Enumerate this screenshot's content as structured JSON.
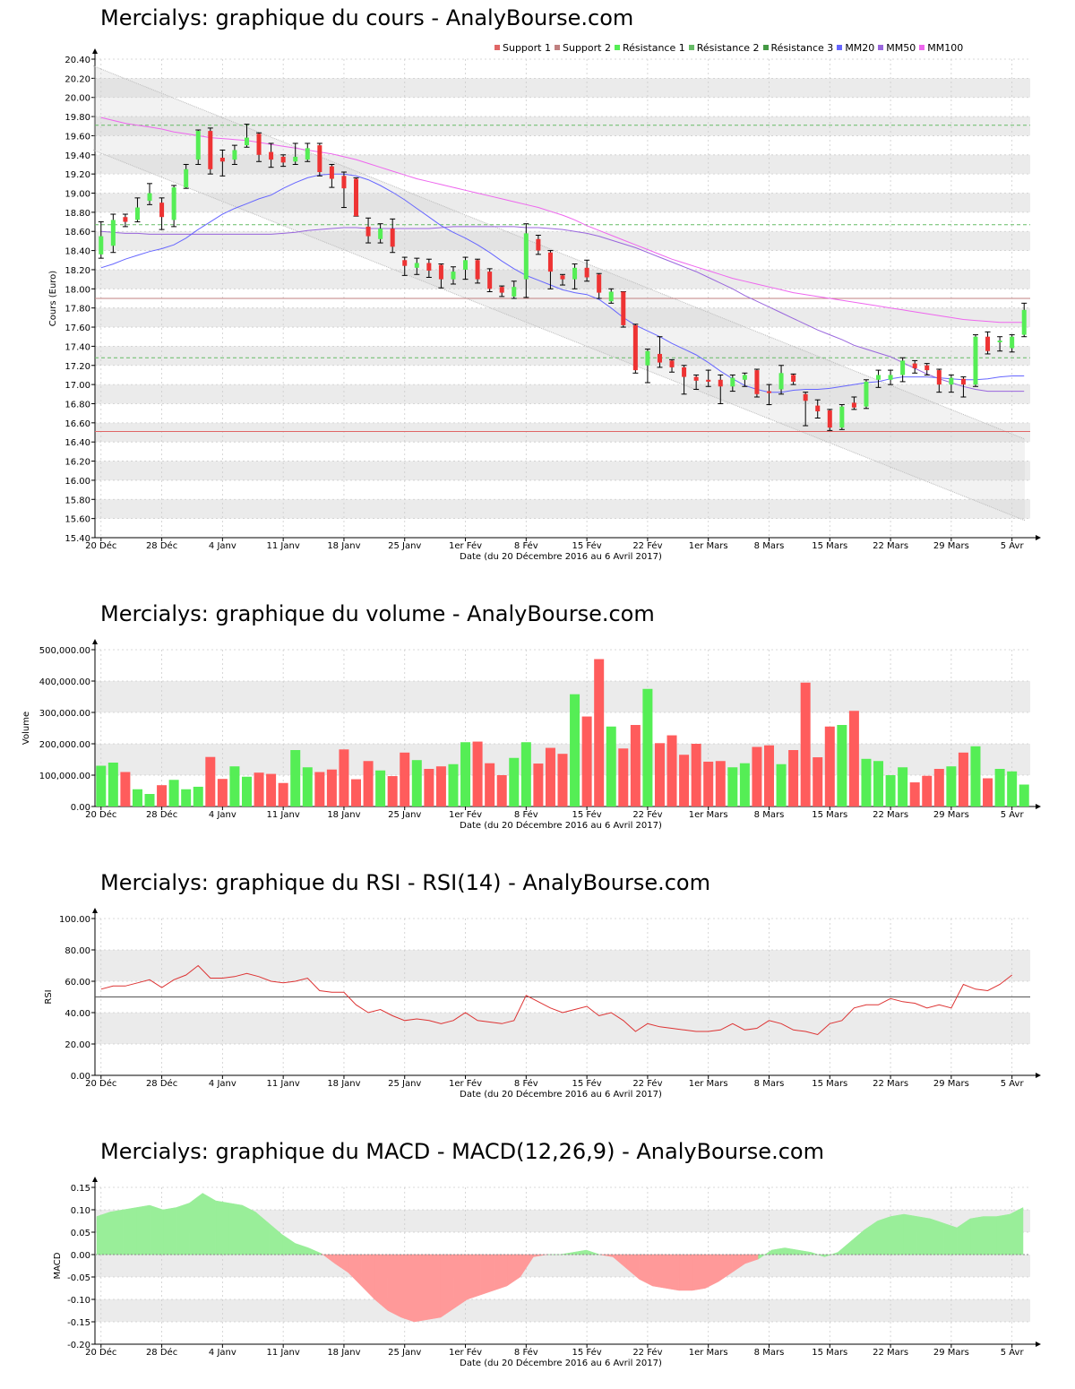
{
  "colors": {
    "up": "#55ee55",
    "down": "#ee3333",
    "support1": "#e06666",
    "support2": "#c08080",
    "resistance": "#66bb66",
    "mm20": "#6666ff",
    "mm50": "#9966dd",
    "mm100": "#ee66ee",
    "rsi": "#dd3333",
    "macd_pos": "#99ee99",
    "macd_neg": "#ff9999",
    "band": "#ebebeb",
    "grid": "#cccccc"
  },
  "x_axis": {
    "date_label": "Date (du 20 Décembre 2016 au 6 Avril 2017)",
    "ticks": [
      {
        "label": "20 Déc",
        "i": 0
      },
      {
        "label": "28 Déc",
        "i": 5
      },
      {
        "label": "4 Janv",
        "i": 10
      },
      {
        "label": "11 Janv",
        "i": 15
      },
      {
        "label": "18 Janv",
        "i": 20
      },
      {
        "label": "25 Janv",
        "i": 25
      },
      {
        "label": "1er Fév",
        "i": 30
      },
      {
        "label": "8 Fév",
        "i": 35
      },
      {
        "label": "15 Fév",
        "i": 40
      },
      {
        "label": "22 Fév",
        "i": 45
      },
      {
        "label": "1er Mars",
        "i": 50
      },
      {
        "label": "8 Mars",
        "i": 55
      },
      {
        "label": "15 Mars",
        "i": 60
      },
      {
        "label": "22 Mars",
        "i": 65
      },
      {
        "label": "29 Mars",
        "i": 70
      },
      {
        "label": "5 Avr",
        "i": 75
      }
    ]
  },
  "price_chart": {
    "title": "Mercialys: graphique du cours - AnalyBourse.com",
    "ylabel": "Cours (Euro)",
    "ylim": [
      15.4,
      20.4
    ],
    "yticks": [
      "20.40",
      "20.20",
      "20.00",
      "19.80",
      "19.60",
      "19.40",
      "19.20",
      "19.00",
      "18.80",
      "18.60",
      "18.40",
      "18.20",
      "18.00",
      "17.80",
      "17.60",
      "17.40",
      "17.20",
      "17.00",
      "16.80",
      "16.60",
      "16.40",
      "16.20",
      "16.00",
      "15.80",
      "15.60",
      "15.40"
    ],
    "legend": [
      "Support 1",
      "Support 2",
      "Résistance 1",
      "Résistance 2",
      "Résistance 3",
      "MM20",
      "MM50",
      "MM100"
    ],
    "support1": 16.51,
    "support2": 17.9,
    "resistance1": 17.28,
    "resistance2": 18.67,
    "resistance3": 19.71,
    "channel": {
      "upper_start": 20.33,
      "upper_end": 16.43,
      "lower_start": 19.45,
      "lower_end": 15.58
    }
  },
  "volume_chart": {
    "title": "Mercialys: graphique du volume - AnalyBourse.com",
    "ylabel": "Volume",
    "ylim": [
      0,
      500000
    ],
    "yticks": [
      "500,000.00",
      "400,000.00",
      "300,000.00",
      "200,000.00",
      "100,000.00",
      "0.00"
    ]
  },
  "rsi_chart": {
    "title": "Mercialys: graphique du RSI - RSI(14) - AnalyBourse.com",
    "ylabel": "RSI",
    "ylim": [
      0,
      100
    ],
    "yticks": [
      "100.00",
      "80.00",
      "60.00",
      "40.00",
      "20.00",
      "0.00"
    ],
    "midline": 50
  },
  "macd_chart": {
    "title": "Mercialys: graphique du MACD - MACD(12,26,9) - AnalyBourse.com",
    "ylabel": "MACD",
    "ylim": [
      -0.2,
      0.15
    ],
    "yticks": [
      "0.15",
      "0.10",
      "0.05",
      "0.00",
      "-0.05",
      "-0.10",
      "-0.15",
      "-0.20"
    ]
  },
  "chart_data": [
    {
      "type": "candlestick",
      "title": "Mercialys: graphique du cours - AnalyBourse.com",
      "xlabel": "Date (du 20 Décembre 2016 au 6 Avril 2017)",
      "ylabel": "Cours (Euro)",
      "ylim": [
        15.4,
        20.4
      ],
      "grid": true,
      "legend_position": "top-right",
      "candles": [
        {
          "o": 18.36,
          "c": 18.55,
          "h": 18.7,
          "l": 18.32
        },
        {
          "o": 18.45,
          "c": 18.72,
          "h": 18.78,
          "l": 18.38
        },
        {
          "o": 18.75,
          "c": 18.7,
          "h": 18.78,
          "l": 18.65
        },
        {
          "o": 18.72,
          "c": 18.85,
          "h": 18.95,
          "l": 18.7
        },
        {
          "o": 18.92,
          "c": 19.0,
          "h": 19.1,
          "l": 18.88
        },
        {
          "o": 18.9,
          "c": 18.75,
          "h": 18.95,
          "l": 18.62
        },
        {
          "o": 18.72,
          "c": 19.06,
          "h": 19.08,
          "l": 18.65
        },
        {
          "o": 19.06,
          "c": 19.25,
          "h": 19.3,
          "l": 19.05
        },
        {
          "o": 19.35,
          "c": 19.65,
          "h": 19.66,
          "l": 19.3
        },
        {
          "o": 19.65,
          "c": 19.25,
          "h": 19.68,
          "l": 19.2
        },
        {
          "o": 19.37,
          "c": 19.33,
          "h": 19.45,
          "l": 19.18
        },
        {
          "o": 19.35,
          "c": 19.45,
          "h": 19.5,
          "l": 19.3
        },
        {
          "o": 19.5,
          "c": 19.58,
          "h": 19.72,
          "l": 19.48
        },
        {
          "o": 19.62,
          "c": 19.4,
          "h": 19.63,
          "l": 19.33
        },
        {
          "o": 19.43,
          "c": 19.35,
          "h": 19.52,
          "l": 19.27
        },
        {
          "o": 19.38,
          "c": 19.32,
          "h": 19.4,
          "l": 19.28
        },
        {
          "o": 19.33,
          "c": 19.38,
          "h": 19.52,
          "l": 19.3
        },
        {
          "o": 19.35,
          "c": 19.47,
          "h": 19.52,
          "l": 19.33
        },
        {
          "o": 19.5,
          "c": 19.22,
          "h": 19.52,
          "l": 19.18
        },
        {
          "o": 19.28,
          "c": 19.15,
          "h": 19.3,
          "l": 19.06
        },
        {
          "o": 19.18,
          "c": 19.05,
          "h": 19.22,
          "l": 18.85
        },
        {
          "o": 19.15,
          "c": 18.76,
          "h": 19.16,
          "l": 18.76
        },
        {
          "o": 18.65,
          "c": 18.55,
          "h": 18.74,
          "l": 18.48
        },
        {
          "o": 18.52,
          "c": 18.63,
          "h": 18.68,
          "l": 18.48
        },
        {
          "o": 18.63,
          "c": 18.44,
          "h": 18.73,
          "l": 18.38
        },
        {
          "o": 18.3,
          "c": 18.24,
          "h": 18.33,
          "l": 18.14
        },
        {
          "o": 18.22,
          "c": 18.27,
          "h": 18.32,
          "l": 18.15
        },
        {
          "o": 18.27,
          "c": 18.19,
          "h": 18.31,
          "l": 18.12
        },
        {
          "o": 18.25,
          "c": 18.1,
          "h": 18.26,
          "l": 18.01
        },
        {
          "o": 18.1,
          "c": 18.18,
          "h": 18.23,
          "l": 18.05
        },
        {
          "o": 18.2,
          "c": 18.3,
          "h": 18.33,
          "l": 18.1
        },
        {
          "o": 18.3,
          "c": 18.1,
          "h": 18.31,
          "l": 18.06
        },
        {
          "o": 18.18,
          "c": 18.0,
          "h": 18.21,
          "l": 17.97
        },
        {
          "o": 18.02,
          "c": 17.96,
          "h": 18.03,
          "l": 17.92
        },
        {
          "o": 17.92,
          "c": 18.02,
          "h": 18.08,
          "l": 17.9
        },
        {
          "o": 18.1,
          "c": 18.58,
          "h": 18.68,
          "l": 17.91
        },
        {
          "o": 18.52,
          "c": 18.4,
          "h": 18.56,
          "l": 18.36
        },
        {
          "o": 18.38,
          "c": 18.18,
          "h": 18.4,
          "l": 18.0
        },
        {
          "o": 18.14,
          "c": 18.1,
          "h": 18.15,
          "l": 18.04
        },
        {
          "o": 18.1,
          "c": 18.22,
          "h": 18.26,
          "l": 18.0
        },
        {
          "o": 18.22,
          "c": 18.12,
          "h": 18.3,
          "l": 18.08
        },
        {
          "o": 18.15,
          "c": 17.96,
          "h": 18.16,
          "l": 17.9
        },
        {
          "o": 17.87,
          "c": 17.97,
          "h": 18.0,
          "l": 17.85
        },
        {
          "o": 17.97,
          "c": 17.62,
          "h": 17.97,
          "l": 17.6
        },
        {
          "o": 17.62,
          "c": 17.15,
          "h": 17.63,
          "l": 17.12
        },
        {
          "o": 17.2,
          "c": 17.35,
          "h": 17.37,
          "l": 17.02
        },
        {
          "o": 17.32,
          "c": 17.23,
          "h": 17.5,
          "l": 17.18
        },
        {
          "o": 17.25,
          "c": 17.18,
          "h": 17.26,
          "l": 17.13
        },
        {
          "o": 17.18,
          "c": 17.08,
          "h": 17.2,
          "l": 16.9
        },
        {
          "o": 17.08,
          "c": 17.04,
          "h": 17.1,
          "l": 16.95
        },
        {
          "o": 17.05,
          "c": 17.03,
          "h": 17.15,
          "l": 16.98
        },
        {
          "o": 17.05,
          "c": 16.98,
          "h": 17.1,
          "l": 16.8
        },
        {
          "o": 16.98,
          "c": 17.07,
          "h": 17.1,
          "l": 16.93
        },
        {
          "o": 17.05,
          "c": 17.1,
          "h": 17.12,
          "l": 16.98
        },
        {
          "o": 17.15,
          "c": 16.9,
          "h": 17.16,
          "l": 16.87
        },
        {
          "o": 16.93,
          "c": 16.92,
          "h": 17.0,
          "l": 16.79
        },
        {
          "o": 16.95,
          "c": 17.12,
          "h": 17.2,
          "l": 16.9
        },
        {
          "o": 17.1,
          "c": 17.03,
          "h": 17.11,
          "l": 17.0
        },
        {
          "o": 16.9,
          "c": 16.83,
          "h": 16.92,
          "l": 16.57
        },
        {
          "o": 16.78,
          "c": 16.72,
          "h": 16.84,
          "l": 16.65
        },
        {
          "o": 16.73,
          "c": 16.55,
          "h": 16.74,
          "l": 16.52
        },
        {
          "o": 16.55,
          "c": 16.77,
          "h": 16.79,
          "l": 16.53
        },
        {
          "o": 16.81,
          "c": 16.76,
          "h": 16.87,
          "l": 16.74
        },
        {
          "o": 16.77,
          "c": 17.03,
          "h": 17.05,
          "l": 16.75
        },
        {
          "o": 17.05,
          "c": 17.1,
          "h": 17.15,
          "l": 16.97
        },
        {
          "o": 17.05,
          "c": 17.1,
          "h": 17.15,
          "l": 17.0
        },
        {
          "o": 17.1,
          "c": 17.25,
          "h": 17.28,
          "l": 17.03
        },
        {
          "o": 17.22,
          "c": 17.17,
          "h": 17.25,
          "l": 17.12
        },
        {
          "o": 17.2,
          "c": 17.15,
          "h": 17.22,
          "l": 17.1
        },
        {
          "o": 17.15,
          "c": 17.0,
          "h": 17.16,
          "l": 16.92
        },
        {
          "o": 17.0,
          "c": 17.07,
          "h": 17.1,
          "l": 16.92
        },
        {
          "o": 17.06,
          "c": 17.0,
          "h": 17.08,
          "l": 16.87
        },
        {
          "o": 17.0,
          "c": 17.5,
          "h": 17.52,
          "l": 16.98
        },
        {
          "o": 17.5,
          "c": 17.35,
          "h": 17.55,
          "l": 17.32
        },
        {
          "o": 17.46,
          "c": 17.46,
          "h": 17.5,
          "l": 17.35
        },
        {
          "o": 17.38,
          "c": 17.5,
          "h": 17.52,
          "l": 17.34
        },
        {
          "o": 17.52,
          "c": 17.78,
          "h": 17.85,
          "l": 17.5
        }
      ],
      "mm20": [
        18.22,
        18.26,
        18.31,
        18.35,
        18.39,
        18.42,
        18.46,
        18.53,
        18.62,
        18.7,
        18.78,
        18.84,
        18.89,
        18.94,
        18.98,
        19.05,
        19.11,
        19.16,
        19.19,
        19.2,
        19.2,
        19.18,
        19.14,
        19.08,
        19.01,
        18.93,
        18.84,
        18.75,
        18.66,
        18.59,
        18.53,
        18.46,
        18.38,
        18.29,
        18.21,
        18.14,
        18.09,
        18.04,
        17.99,
        17.96,
        17.94,
        17.89,
        17.8,
        17.7,
        17.62,
        17.56,
        17.5,
        17.43,
        17.37,
        17.31,
        17.23,
        17.14,
        17.06,
        16.99,
        16.95,
        16.92,
        16.92,
        16.94,
        16.95,
        16.95,
        16.96,
        16.98,
        17.0,
        17.02,
        17.03,
        17.06,
        17.08,
        17.08,
        17.08,
        17.07,
        17.06,
        17.05,
        17.05,
        17.06,
        17.08,
        17.09
      ],
      "mm50": [
        18.6,
        18.59,
        18.58,
        18.58,
        18.57,
        18.57,
        18.57,
        18.57,
        18.57,
        18.57,
        18.57,
        18.57,
        18.57,
        18.57,
        18.57,
        18.58,
        18.59,
        18.61,
        18.62,
        18.63,
        18.64,
        18.64,
        18.63,
        18.63,
        18.63,
        18.63,
        18.63,
        18.63,
        18.64,
        18.65,
        18.65,
        18.65,
        18.65,
        18.65,
        18.65,
        18.64,
        18.64,
        18.63,
        18.62,
        18.6,
        18.58,
        18.55,
        18.51,
        18.47,
        18.43,
        18.38,
        18.33,
        18.28,
        18.23,
        18.18,
        18.12,
        18.06,
        18.0,
        17.93,
        17.87,
        17.81,
        17.75,
        17.69,
        17.63,
        17.57,
        17.52,
        17.47,
        17.41,
        17.37,
        17.33,
        17.29,
        17.23,
        17.17,
        17.11,
        17.06,
        17.02,
        16.98,
        16.95,
        16.93,
        16.93,
        16.93
      ],
      "mm100": [
        19.79,
        19.76,
        19.73,
        19.71,
        19.69,
        19.67,
        19.64,
        19.62,
        19.6,
        19.58,
        19.57,
        19.56,
        19.55,
        19.53,
        19.51,
        19.49,
        19.47,
        19.45,
        19.43,
        19.41,
        19.38,
        19.35,
        19.31,
        19.27,
        19.23,
        19.19,
        19.15,
        19.12,
        19.09,
        19.06,
        19.03,
        19.0,
        18.97,
        18.94,
        18.91,
        18.88,
        18.85,
        18.81,
        18.77,
        18.72,
        18.66,
        18.61,
        18.56,
        18.51,
        18.46,
        18.41,
        18.36,
        18.31,
        18.27,
        18.23,
        18.19,
        18.15,
        18.11,
        18.08,
        18.05,
        18.02,
        17.99,
        17.96,
        17.94,
        17.92,
        17.9,
        17.88,
        17.86,
        17.84,
        17.82,
        17.8,
        17.78,
        17.76,
        17.74,
        17.72,
        17.7,
        17.68,
        17.67,
        17.66,
        17.65,
        17.65
      ],
      "series": [
        {
          "name": "Support 1"
        },
        {
          "name": "Support 2"
        },
        {
          "name": "Résistance 1"
        },
        {
          "name": "Résistance 2"
        },
        {
          "name": "Résistance 3"
        },
        {
          "name": "MM20"
        },
        {
          "name": "MM50"
        },
        {
          "name": "MM100"
        }
      ]
    },
    {
      "type": "bar",
      "title": "Mercialys: graphique du volume - AnalyBourse.com",
      "xlabel": "Date (du 20 Décembre 2016 au 6 Avril 2017)",
      "ylabel": "Volume",
      "ylim": [
        0,
        500000
      ],
      "values": [
        130000,
        140000,
        110000,
        55000,
        40000,
        68000,
        85000,
        55000,
        63000,
        158000,
        88000,
        128000,
        95000,
        108000,
        104000,
        75000,
        180000,
        125000,
        110000,
        118000,
        182000,
        87000,
        145000,
        115000,
        97000,
        172000,
        148000,
        120000,
        128000,
        135000,
        205000,
        207000,
        138000,
        100000,
        155000,
        205000,
        137000,
        187000,
        168000,
        358000,
        287000,
        470000,
        255000,
        185000,
        260000,
        375000,
        202000,
        227000,
        165000,
        200000,
        143000,
        145000,
        125000,
        138000,
        190000,
        195000,
        135000,
        180000,
        395000,
        157000,
        255000,
        260000,
        305000,
        152000,
        145000,
        100000,
        125000,
        77000,
        98000,
        120000,
        128000,
        172000,
        192000,
        90000,
        120000,
        112000,
        70000
      ]
    },
    {
      "type": "line",
      "title": "Mercialys: graphique du RSI - RSI(14) - AnalyBourse.com",
      "xlabel": "Date (du 20 Décembre 2016 au 6 Avril 2017)",
      "ylabel": "RSI",
      "ylim": [
        0,
        100
      ],
      "values": [
        55,
        57,
        57,
        59,
        61,
        56,
        61,
        64,
        70,
        62,
        62,
        63,
        65,
        63,
        60,
        59,
        60,
        62,
        54,
        53,
        53,
        45,
        40,
        42,
        38,
        35,
        36,
        35,
        33,
        35,
        40,
        35,
        34,
        33,
        35,
        51,
        47,
        43,
        40,
        42,
        44,
        38,
        40,
        35,
        28,
        33,
        31,
        30,
        29,
        28,
        28,
        29,
        33,
        29,
        30,
        35,
        33,
        29,
        28,
        26,
        33,
        35,
        43,
        45,
        45,
        49,
        47,
        46,
        43,
        45,
        43,
        58,
        55,
        54,
        58,
        64
      ]
    },
    {
      "type": "area",
      "title": "Mercialys: graphique du MACD - MACD(12,26,9) - AnalyBourse.com",
      "xlabel": "Date (du 20 Décembre 2016 au 6 Avril 2017)",
      "ylabel": "MACD",
      "ylim": [
        -0.2,
        0.15
      ],
      "values": [
        0.085,
        0.095,
        0.1,
        0.105,
        0.11,
        0.1,
        0.105,
        0.115,
        0.137,
        0.12,
        0.115,
        0.11,
        0.095,
        0.07,
        0.045,
        0.025,
        0.015,
        0.002,
        -0.02,
        -0.04,
        -0.07,
        -0.1,
        -0.125,
        -0.14,
        -0.15,
        -0.145,
        -0.14,
        -0.12,
        -0.1,
        -0.09,
        -0.08,
        -0.07,
        -0.05,
        -0.005,
        0.0,
        0.0,
        0.005,
        0.01,
        0.0,
        -0.005,
        -0.03,
        -0.055,
        -0.07,
        -0.075,
        -0.08,
        -0.08,
        -0.075,
        -0.06,
        -0.04,
        -0.02,
        -0.01,
        0.01,
        0.015,
        0.01,
        0.005,
        -0.005,
        0.005,
        0.03,
        0.055,
        0.075,
        0.085,
        0.09,
        0.085,
        0.08,
        0.07,
        0.06,
        0.08,
        0.085,
        0.085,
        0.09,
        0.105
      ]
    }
  ]
}
